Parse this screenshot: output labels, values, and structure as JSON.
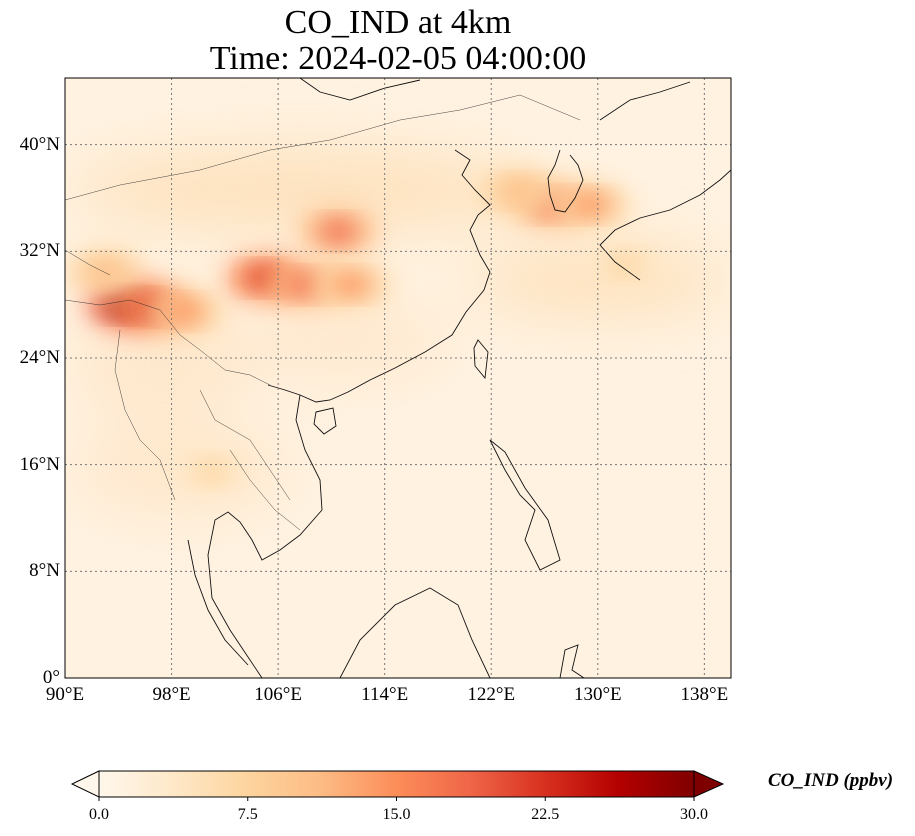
{
  "title": {
    "line1": "CO_IND at 4km",
    "line2": "Time: 2024-02-05 04:00:00"
  },
  "map": {
    "lon_range": [
      90,
      140
    ],
    "lat_range": [
      0,
      45
    ],
    "x_ticks": [
      {
        "lon": 90,
        "label": "90°E"
      },
      {
        "lon": 98,
        "label": "98°E"
      },
      {
        "lon": 106,
        "label": "106°E"
      },
      {
        "lon": 114,
        "label": "114°E"
      },
      {
        "lon": 122,
        "label": "122°E"
      },
      {
        "lon": 130,
        "label": "130°E"
      },
      {
        "lon": 138,
        "label": "138°E"
      }
    ],
    "y_ticks": [
      {
        "lat": 0,
        "label": "0°"
      },
      {
        "lat": 8,
        "label": "8°N"
      },
      {
        "lat": 16,
        "label": "16°N"
      },
      {
        "lat": 24,
        "label": "24°N"
      },
      {
        "lat": 32,
        "label": "32°N"
      },
      {
        "lat": 40,
        "label": "40°N"
      }
    ],
    "gridlines": "dotted",
    "plumes": [
      {
        "lon": 94.5,
        "lat": 28.0,
        "value": 30
      },
      {
        "lon": 96.5,
        "lat": 27.8,
        "value": 22
      },
      {
        "lon": 99.0,
        "lat": 27.5,
        "value": 15
      },
      {
        "lon": 93.0,
        "lat": 30.5,
        "value": 12
      },
      {
        "lon": 105.0,
        "lat": 30.0,
        "value": 22
      },
      {
        "lon": 108.0,
        "lat": 29.5,
        "value": 18
      },
      {
        "lon": 111.5,
        "lat": 29.5,
        "value": 15
      },
      {
        "lon": 110.5,
        "lat": 33.5,
        "value": 17
      },
      {
        "lon": 126.5,
        "lat": 35.5,
        "value": 18
      },
      {
        "lon": 129.5,
        "lat": 35.5,
        "value": 15
      },
      {
        "lon": 124.0,
        "lat": 36.5,
        "value": 10
      },
      {
        "lon": 132.0,
        "lat": 31.0,
        "value": 6
      },
      {
        "lon": 101.0,
        "lat": 15.5,
        "value": 6
      }
    ]
  },
  "colorbar": {
    "variable_label": "CO_IND (ppbv)",
    "min": 0.0,
    "max": 30.0,
    "extend": "both",
    "colors": [
      "#fff7ec",
      "#fee8c8",
      "#fdd49e",
      "#fdbb84",
      "#fc8d59",
      "#ef6548",
      "#d7301f",
      "#b30000",
      "#7f0000"
    ],
    "ticks": [
      {
        "value": 0.0,
        "label": "0.0"
      },
      {
        "value": 7.5,
        "label": "7.5"
      },
      {
        "value": 15.0,
        "label": "15.0"
      },
      {
        "value": 22.5,
        "label": "22.5"
      },
      {
        "value": 30.0,
        "label": "30.0"
      }
    ]
  }
}
